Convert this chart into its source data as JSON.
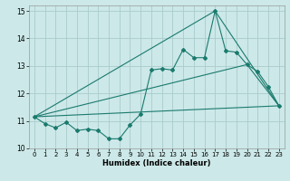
{
  "xlabel": "Humidex (Indice chaleur)",
  "xlim": [
    -0.5,
    23.5
  ],
  "ylim": [
    10,
    15.2
  ],
  "yticks": [
    10,
    11,
    12,
    13,
    14,
    15
  ],
  "xticks": [
    0,
    1,
    2,
    3,
    4,
    5,
    6,
    7,
    8,
    9,
    10,
    11,
    12,
    13,
    14,
    15,
    16,
    17,
    18,
    19,
    20,
    21,
    22,
    23
  ],
  "bg_color": "#cce8e8",
  "grid_color": "#aacccc",
  "line_color": "#1a7a6e",
  "series1_x": [
    0,
    1,
    2,
    3,
    4,
    5,
    6,
    7,
    8,
    9,
    10,
    11,
    12,
    13,
    14,
    15,
    16,
    17,
    18,
    19,
    20,
    21,
    22,
    23
  ],
  "series1_y": [
    11.15,
    10.9,
    10.75,
    10.95,
    10.65,
    10.7,
    10.65,
    10.35,
    10.35,
    10.85,
    11.25,
    12.85,
    12.9,
    12.85,
    13.6,
    13.3,
    13.3,
    15.0,
    13.55,
    13.5,
    13.05,
    12.8,
    12.25,
    11.55
  ],
  "series2_x": [
    0,
    23
  ],
  "series2_y": [
    11.15,
    11.55
  ],
  "series3_x": [
    0,
    20,
    23
  ],
  "series3_y": [
    11.15,
    13.05,
    11.55
  ],
  "series4_x": [
    0,
    17,
    23
  ],
  "series4_y": [
    11.15,
    15.0,
    11.55
  ]
}
